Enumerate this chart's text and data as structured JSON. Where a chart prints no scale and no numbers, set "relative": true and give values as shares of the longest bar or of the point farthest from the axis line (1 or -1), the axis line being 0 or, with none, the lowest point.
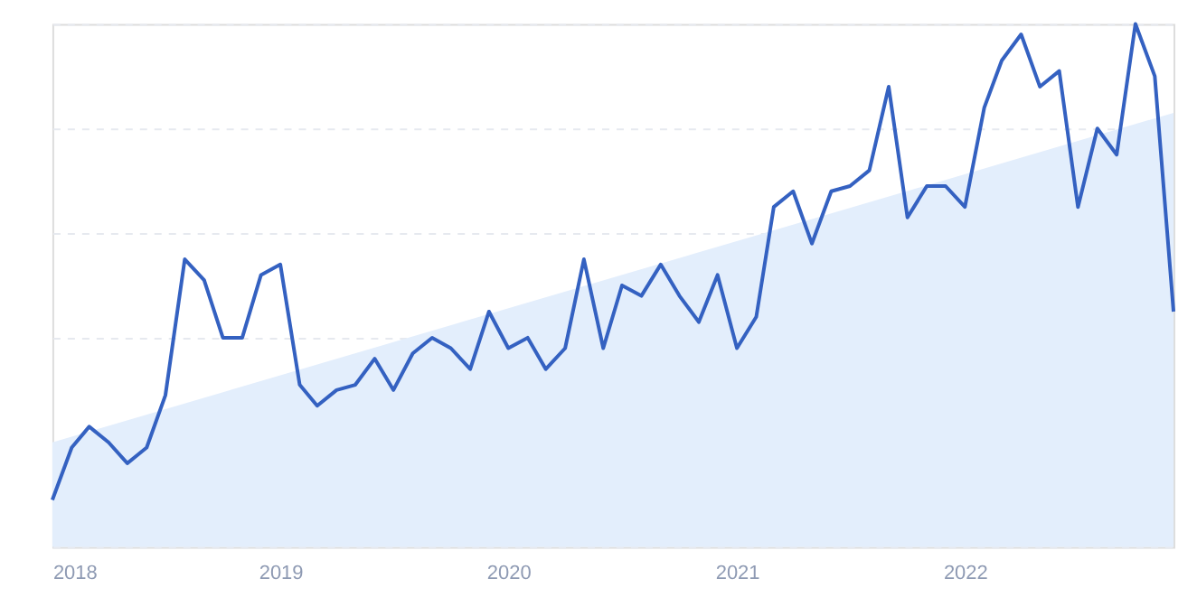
{
  "chart_data": {
    "type": "line",
    "relative": true,
    "grid": "y",
    "tick_labels": "x",
    "marker": "none",
    "line_style": "solid",
    "x": [
      "2018-01",
      "2018-02",
      "2018-03",
      "2018-04",
      "2018-05",
      "2018-06",
      "2018-07",
      "2018-08",
      "2018-09",
      "2018-10",
      "2018-11",
      "2018-12",
      "2019-01",
      "2019-02",
      "2019-03",
      "2019-04",
      "2019-05",
      "2019-06",
      "2019-07",
      "2019-08",
      "2019-09",
      "2019-10",
      "2019-11",
      "2019-12",
      "2020-01",
      "2020-02",
      "2020-03",
      "2020-04",
      "2020-05",
      "2020-06",
      "2020-07",
      "2020-08",
      "2020-09",
      "2020-10",
      "2020-11",
      "2020-12",
      "2021-01",
      "2021-02",
      "2021-03",
      "2021-04",
      "2021-05",
      "2021-06",
      "2021-07",
      "2021-08",
      "2021-09",
      "2021-10",
      "2021-11",
      "2021-12",
      "2022-01",
      "2022-02",
      "2022-03",
      "2022-04",
      "2022-05",
      "2022-06",
      "2022-07",
      "2022-08",
      "2022-09",
      "2022-10",
      "2022-11",
      "2022-12"
    ],
    "xlim": [
      "2018-01",
      "2022-12"
    ],
    "xticks": [
      "2018",
      "2019",
      "2020",
      "2021",
      "2022"
    ],
    "series": [
      {
        "type": "area",
        "color": "#e3eefc",
        "x": [
          "2018-01",
          "2022-12"
        ],
        "values": [
          0.2,
          0.83
        ]
      },
      {
        "color": "#3461c1",
        "values": [
          0.09,
          0.19,
          0.23,
          0.2,
          0.16,
          0.19,
          0.29,
          0.55,
          0.51,
          0.4,
          0.4,
          0.52,
          0.54,
          0.31,
          0.27,
          0.3,
          0.31,
          0.36,
          0.3,
          0.37,
          0.4,
          0.38,
          0.34,
          0.45,
          0.38,
          0.4,
          0.34,
          0.38,
          0.55,
          0.38,
          0.5,
          0.48,
          0.54,
          0.48,
          0.43,
          0.52,
          0.38,
          0.44,
          0.65,
          0.68,
          0.58,
          0.68,
          0.69,
          0.72,
          0.88,
          0.63,
          0.69,
          0.69,
          0.65,
          0.84,
          0.93,
          0.98,
          0.88,
          0.91,
          0.65,
          0.8,
          0.75,
          1,
          0.9,
          0.45
        ]
      }
    ]
  }
}
